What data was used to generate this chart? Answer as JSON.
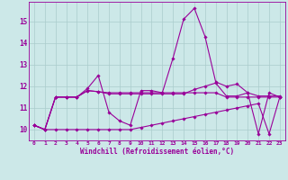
{
  "xlabel": "Windchill (Refroidissement éolien,°C)",
  "x_values": [
    0,
    1,
    2,
    3,
    4,
    5,
    6,
    7,
    8,
    9,
    10,
    11,
    12,
    13,
    14,
    15,
    16,
    17,
    18,
    19,
    20,
    21,
    22,
    23
  ],
  "series": [
    [
      10.2,
      10.0,
      11.5,
      11.5,
      11.5,
      11.9,
      12.5,
      10.8,
      10.4,
      10.2,
      11.8,
      11.8,
      11.7,
      13.3,
      15.1,
      15.6,
      14.3,
      12.2,
      12.0,
      12.1,
      11.7,
      9.8,
      11.7,
      11.5
    ],
    [
      10.2,
      10.0,
      11.5,
      11.5,
      11.5,
      11.8,
      11.75,
      11.65,
      11.65,
      11.65,
      11.65,
      11.65,
      11.65,
      11.65,
      11.65,
      11.85,
      12.0,
      12.15,
      11.55,
      11.55,
      11.7,
      11.55,
      11.55,
      11.55
    ],
    [
      10.2,
      10.0,
      11.5,
      11.5,
      11.5,
      11.8,
      11.75,
      11.7,
      11.7,
      11.7,
      11.7,
      11.7,
      11.7,
      11.7,
      11.7,
      11.7,
      11.7,
      11.7,
      11.5,
      11.5,
      11.5,
      11.5,
      11.5,
      11.5
    ],
    [
      10.2,
      10.0,
      10.0,
      10.0,
      10.0,
      10.0,
      10.0,
      10.0,
      10.0,
      10.0,
      10.1,
      10.2,
      10.3,
      10.4,
      10.5,
      10.6,
      10.7,
      10.8,
      10.9,
      11.0,
      11.1,
      11.2,
      9.8,
      11.5
    ]
  ],
  "line_color": "#990099",
  "marker": "D",
  "marker_size": 1.8,
  "bg_color": "#cce8e8",
  "grid_color": "#aacccc",
  "ylim": [
    9.5,
    15.9
  ],
  "yticks": [
    10,
    11,
    12,
    13,
    14,
    15
  ],
  "line_width": 0.8,
  "fig_width": 3.2,
  "fig_height": 2.0,
  "dpi": 100
}
